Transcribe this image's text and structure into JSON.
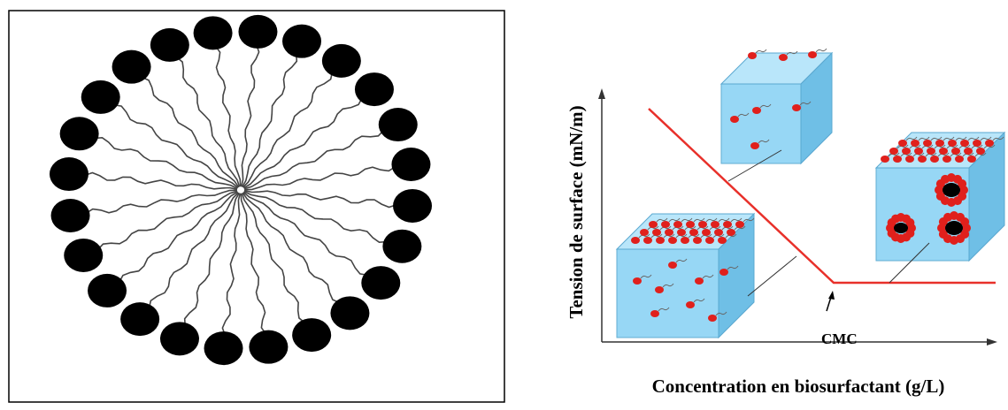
{
  "y_axis_label": "Tension de surface (mN/m)",
  "x_axis_label": "Concentration en biosurfactant (g/L)",
  "annotation": "CMC"
}
